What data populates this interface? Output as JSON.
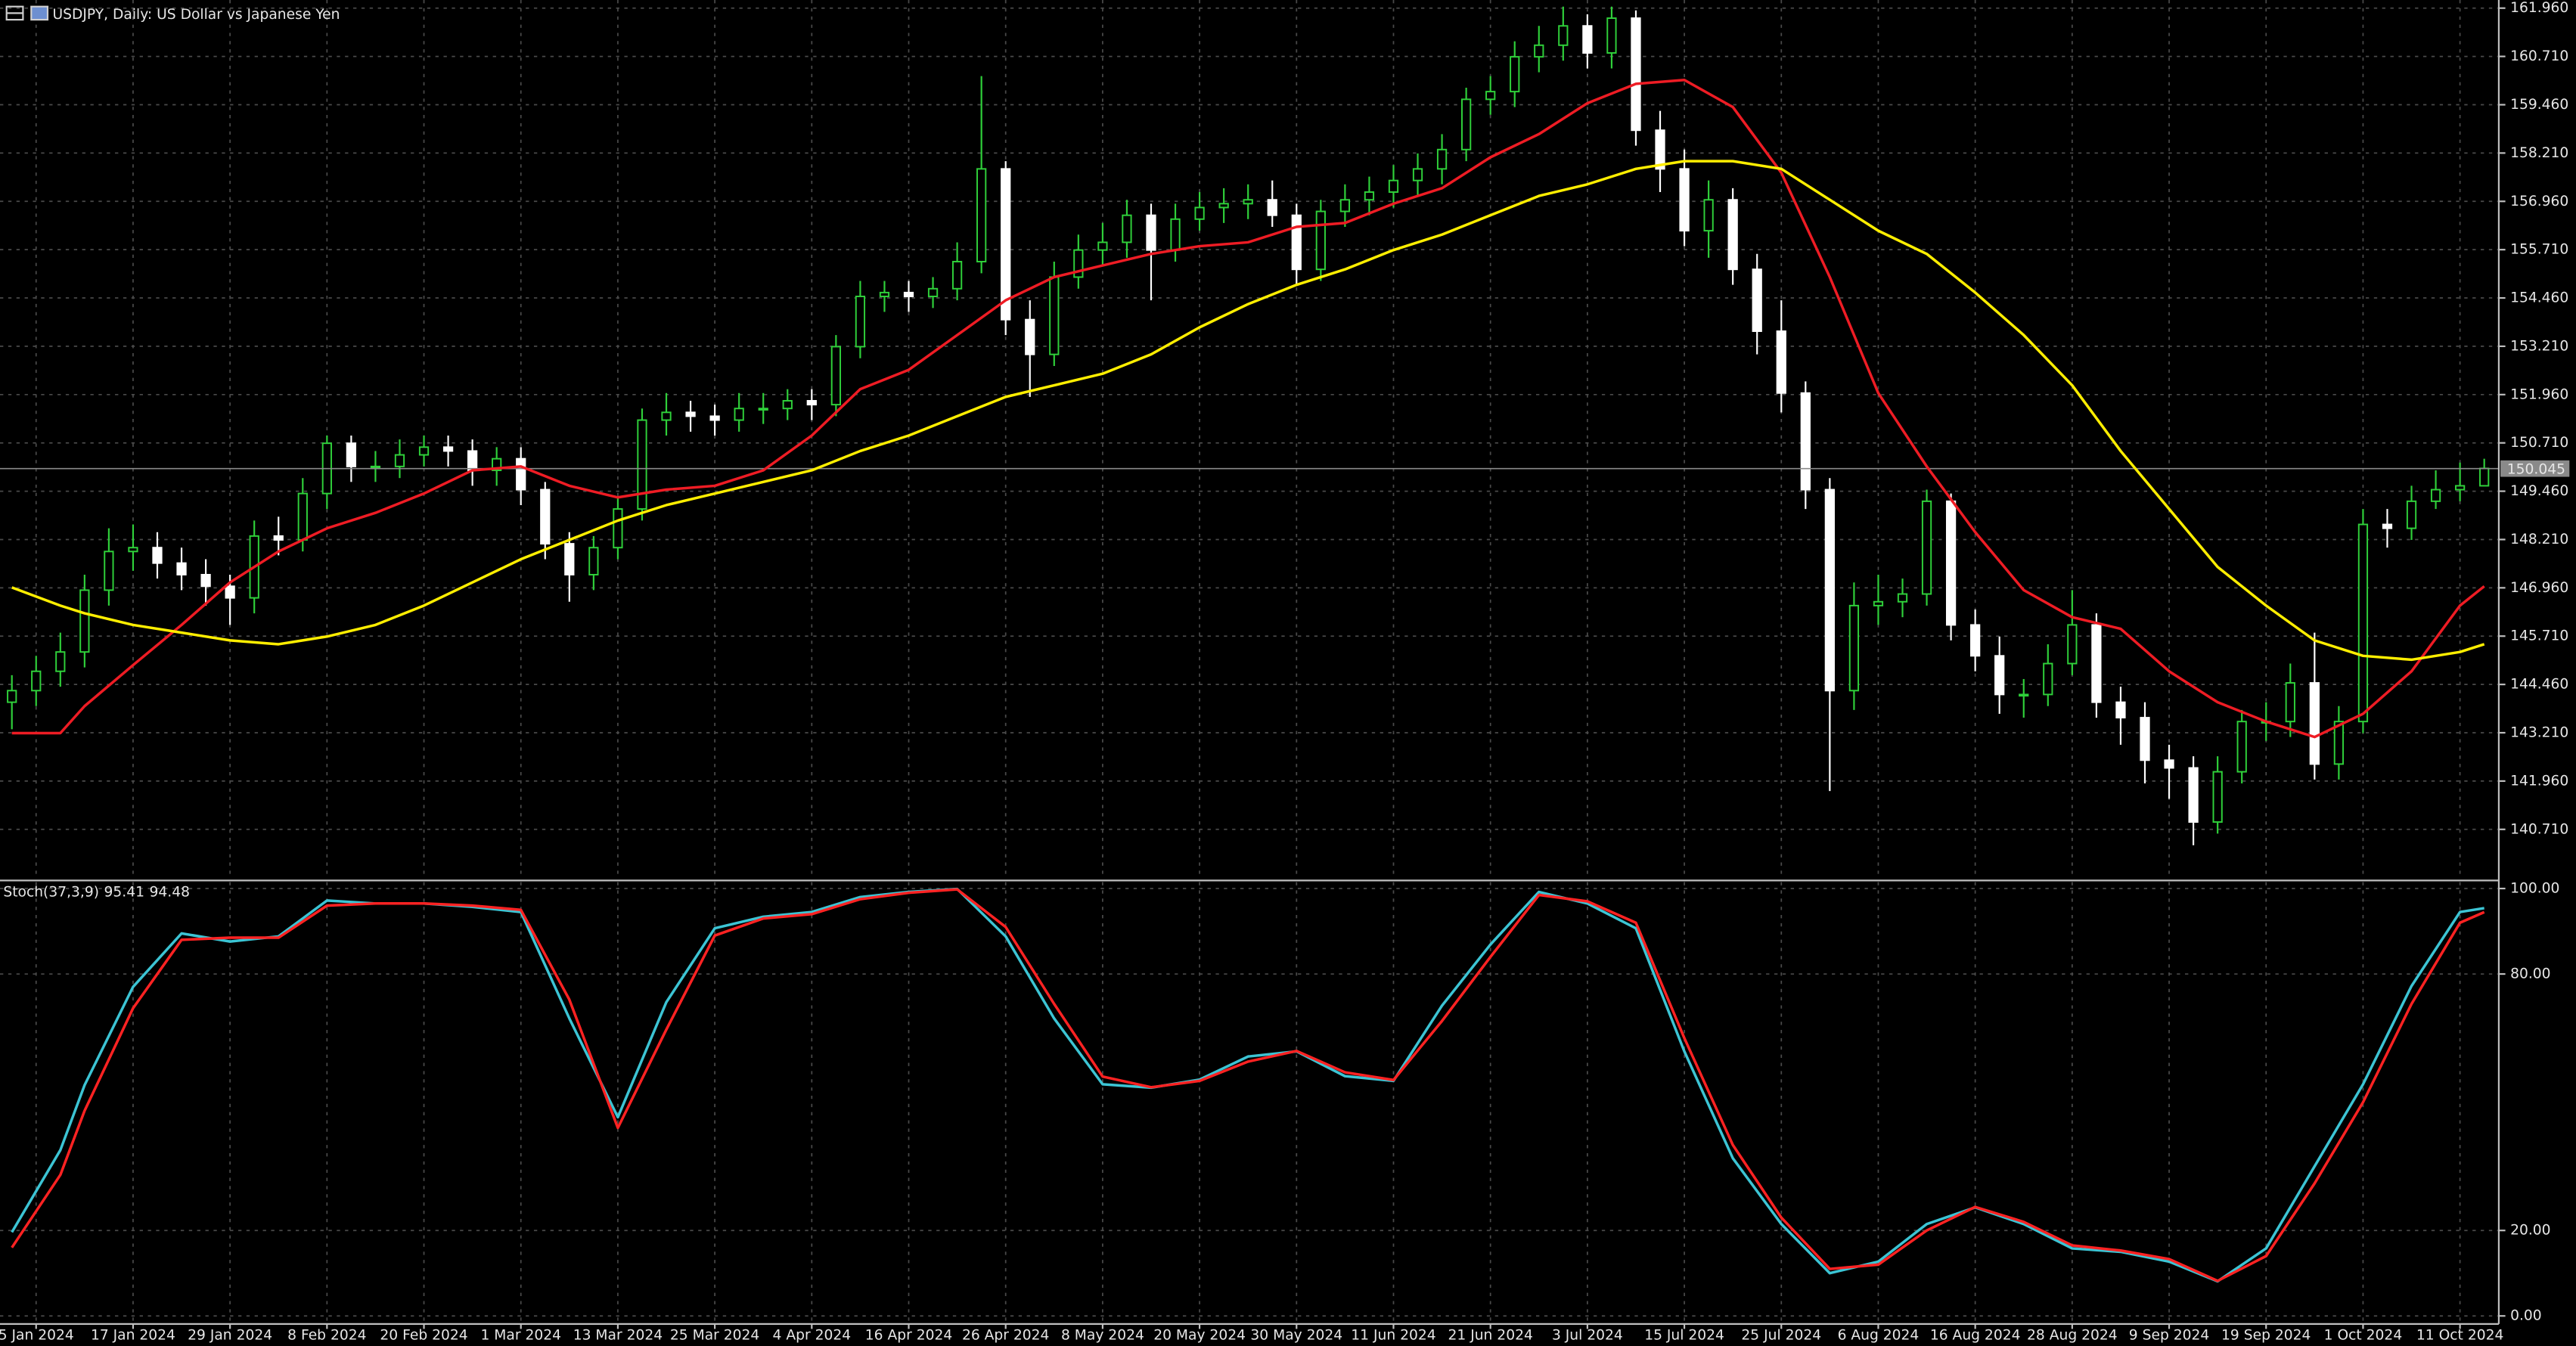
{
  "chart_data": [
    {
      "type": "candlestick",
      "title": "USDJPY, Daily:  US Dollar vs Japanese Yen",
      "open": [
        144.0,
        144.3,
        144.8,
        145.3,
        146.9,
        147.9,
        148.0,
        147.6,
        147.3,
        147.0,
        146.7,
        148.3,
        148.2,
        149.4,
        150.7,
        150.1,
        150.1,
        150.4,
        150.6,
        150.5,
        150.0,
        150.3,
        149.5,
        148.1,
        147.3,
        148.0,
        149.0,
        151.3,
        151.5,
        151.4,
        151.3,
        151.6,
        151.6,
        151.8,
        151.7,
        153.2,
        154.5,
        154.6,
        154.5,
        154.7,
        155.4,
        157.8,
        153.9,
        153.0,
        155.0,
        155.7,
        155.9,
        156.6,
        155.7,
        156.5,
        156.8,
        156.9,
        157.0,
        156.6,
        155.2,
        156.7,
        157.0,
        157.2,
        157.5,
        157.8,
        158.3,
        159.6,
        159.8,
        160.7,
        161.0,
        161.5,
        160.8,
        161.7,
        158.8,
        157.8,
        156.2,
        157.0,
        155.2,
        153.6,
        152.0,
        149.5,
        144.3,
        146.5,
        146.6,
        146.8,
        149.2,
        146.0,
        145.2,
        144.2,
        144.2,
        145.0,
        146.0,
        144.0,
        143.6,
        142.5,
        142.3,
        140.9,
        142.2,
        143.5,
        143.5,
        144.5,
        142.4,
        143.5,
        148.6,
        148.5,
        149.2,
        149.5,
        149.6
      ],
      "high": [
        144.7,
        145.2,
        145.8,
        147.3,
        148.5,
        148.6,
        148.4,
        148.0,
        147.7,
        147.3,
        148.7,
        148.8,
        149.8,
        150.9,
        150.9,
        150.5,
        150.8,
        150.9,
        150.9,
        150.8,
        150.6,
        150.6,
        149.7,
        148.4,
        148.3,
        149.3,
        151.6,
        152.0,
        151.8,
        151.7,
        152.0,
        152.0,
        152.1,
        152.1,
        153.5,
        154.9,
        154.9,
        154.9,
        155.0,
        155.9,
        160.2,
        158.0,
        154.4,
        155.4,
        156.1,
        156.4,
        157.0,
        156.9,
        156.9,
        157.2,
        157.3,
        157.4,
        157.5,
        156.9,
        157.0,
        157.4,
        157.6,
        157.9,
        158.2,
        158.7,
        159.9,
        160.2,
        161.1,
        161.5,
        162.0,
        161.8,
        162.0,
        161.9,
        159.3,
        158.3,
        157.5,
        157.3,
        155.6,
        154.4,
        152.3,
        149.8,
        147.1,
        147.3,
        147.2,
        149.5,
        149.4,
        146.4,
        145.7,
        144.6,
        145.5,
        146.9,
        146.3,
        144.4,
        144.0,
        142.9,
        142.6,
        142.6,
        143.8,
        144.0,
        145.0,
        145.8,
        143.9,
        149.0,
        149.0,
        149.6,
        150.0,
        150.2,
        150.3
      ],
      "low": [
        143.3,
        143.9,
        144.4,
        144.9,
        146.5,
        147.4,
        147.2,
        146.9,
        146.5,
        146.0,
        146.3,
        147.8,
        147.9,
        149.0,
        149.7,
        149.7,
        149.8,
        150.1,
        150.1,
        149.6,
        149.6,
        149.1,
        147.7,
        146.6,
        146.9,
        147.7,
        148.7,
        150.9,
        151.0,
        150.9,
        151.0,
        151.2,
        151.3,
        151.3,
        151.4,
        152.9,
        154.1,
        154.1,
        154.2,
        154.4,
        155.1,
        153.5,
        151.9,
        152.7,
        154.7,
        155.3,
        155.5,
        154.4,
        155.4,
        156.2,
        156.4,
        156.5,
        156.3,
        154.8,
        154.9,
        156.3,
        156.6,
        156.8,
        157.1,
        157.4,
        158.0,
        159.2,
        159.4,
        160.3,
        160.6,
        160.4,
        160.4,
        158.4,
        157.2,
        155.8,
        155.5,
        154.8,
        153.0,
        151.5,
        149.0,
        141.7,
        143.8,
        146.0,
        146.2,
        146.5,
        145.6,
        144.8,
        143.7,
        143.6,
        143.9,
        144.7,
        143.6,
        142.9,
        141.9,
        141.5,
        140.3,
        140.6,
        141.9,
        143.0,
        143.1,
        142.0,
        142.0,
        143.2,
        148.0,
        148.2,
        149.0,
        149.2,
        149.7
      ],
      "close": [
        144.3,
        144.8,
        145.3,
        146.9,
        147.9,
        148.0,
        147.6,
        147.3,
        147.0,
        146.7,
        148.3,
        148.2,
        149.4,
        150.7,
        150.1,
        150.1,
        150.4,
        150.6,
        150.5,
        150.0,
        150.3,
        149.5,
        148.1,
        147.3,
        148.0,
        149.0,
        151.3,
        151.5,
        151.4,
        151.3,
        151.6,
        151.6,
        151.8,
        151.7,
        153.2,
        154.5,
        154.6,
        154.5,
        154.7,
        155.4,
        157.8,
        153.9,
        153.0,
        155.0,
        155.7,
        155.9,
        156.6,
        155.7,
        156.5,
        156.8,
        156.9,
        157.0,
        156.6,
        155.2,
        156.7,
        157.0,
        157.2,
        157.5,
        157.8,
        158.3,
        159.6,
        159.8,
        160.7,
        161.0,
        161.5,
        160.8,
        161.7,
        158.8,
        157.8,
        156.2,
        157.0,
        155.2,
        153.6,
        152.0,
        149.5,
        144.3,
        146.5,
        146.6,
        146.8,
        149.2,
        146.0,
        145.2,
        144.2,
        144.2,
        145.0,
        146.0,
        144.0,
        143.6,
        142.5,
        142.3,
        140.9,
        142.2,
        143.5,
        143.5,
        144.5,
        142.4,
        143.5,
        148.6,
        148.5,
        149.2,
        149.5,
        149.6,
        150.05
      ],
      "up_color": "#2fd03a",
      "down_color": "#ffffff",
      "series": [
        {
          "color": "#ee1c24",
          "x": [
            0,
            2,
            3,
            5,
            7,
            9,
            11,
            13,
            15,
            17,
            19,
            21,
            23,
            25,
            27,
            29,
            31,
            33,
            35,
            37,
            39,
            41,
            43,
            45,
            47,
            49,
            51,
            53,
            55,
            57,
            59,
            61,
            63,
            65,
            67,
            69,
            71,
            73,
            75,
            77,
            79,
            81,
            83,
            85,
            87,
            89,
            91,
            93,
            95,
            97,
            99,
            101,
            102
          ],
          "values": [
            143.2,
            143.2,
            143.9,
            144.96,
            146.0,
            147.1,
            147.9,
            148.5,
            148.9,
            149.4,
            150.0,
            150.1,
            149.6,
            149.3,
            149.5,
            149.6,
            150.0,
            150.9,
            152.1,
            152.6,
            153.5,
            154.4,
            155.0,
            155.3,
            155.6,
            155.8,
            155.9,
            156.3,
            156.4,
            156.9,
            157.3,
            158.1,
            158.7,
            159.5,
            160.0,
            160.1,
            159.4,
            157.7,
            155.0,
            152.0,
            150.1,
            148.4,
            146.9,
            146.2,
            145.9,
            144.8,
            144.0,
            143.5,
            143.1,
            143.7,
            144.8,
            146.5,
            147.0
          ]
        },
        {
          "color": "#ffee00",
          "x": [
            0,
            2,
            3,
            5,
            7,
            9,
            11,
            13,
            15,
            17,
            19,
            21,
            23,
            25,
            27,
            29,
            31,
            33,
            35,
            37,
            39,
            41,
            43,
            45,
            47,
            49,
            51,
            53,
            55,
            57,
            59,
            61,
            63,
            65,
            67,
            69,
            71,
            73,
            75,
            77,
            79,
            81,
            83,
            85,
            87,
            89,
            91,
            93,
            95,
            97,
            99,
            101,
            102
          ],
          "values": [
            146.97,
            146.5,
            146.3,
            146.0,
            145.8,
            145.6,
            145.5,
            145.7,
            146.0,
            146.5,
            147.1,
            147.7,
            148.2,
            148.7,
            149.1,
            149.4,
            149.7,
            150.0,
            150.5,
            150.9,
            151.4,
            151.9,
            152.2,
            152.5,
            153.0,
            153.7,
            154.3,
            154.8,
            155.2,
            155.7,
            156.1,
            156.6,
            157.1,
            157.4,
            157.8,
            158.0,
            158.0,
            157.8,
            157.0,
            156.2,
            155.6,
            154.6,
            153.5,
            152.2,
            150.5,
            149.0,
            147.5,
            146.5,
            145.6,
            145.2,
            145.1,
            145.3,
            145.5
          ]
        }
      ],
      "last_price": 150.045,
      "xlim": [
        -0.49,
        102.6
      ],
      "xticks": [
        {
          "value": 1,
          "label": "5 Jan 2024"
        },
        {
          "value": 5,
          "label": "17 Jan 2024"
        },
        {
          "value": 9,
          "label": "29 Jan 2024"
        },
        {
          "value": 13,
          "label": "8 Feb 2024"
        },
        {
          "value": 17,
          "label": "20 Feb 2024"
        },
        {
          "value": 21,
          "label": "1 Mar 2024"
        },
        {
          "value": 25,
          "label": "13 Mar 2024"
        },
        {
          "value": 29,
          "label": "25 Mar 2024"
        },
        {
          "value": 33,
          "label": "4 Apr 2024"
        },
        {
          "value": 37,
          "label": "16 Apr 2024"
        },
        {
          "value": 41,
          "label": "26 Apr 2024"
        },
        {
          "value": 45,
          "label": "8 May 2024"
        },
        {
          "value": 49,
          "label": "20 May 2024"
        },
        {
          "value": 53,
          "label": "30 May 2024"
        },
        {
          "value": 57,
          "label": "11 Jun 2024"
        },
        {
          "value": 61,
          "label": "21 Jun 2024"
        },
        {
          "value": 65,
          "label": "3 Jul 2024"
        },
        {
          "value": 69,
          "label": "15 Jul 2024"
        },
        {
          "value": 73,
          "label": "25 Jul 2024"
        },
        {
          "value": 77,
          "label": "6 Aug 2024"
        },
        {
          "value": 81,
          "label": "16 Aug 2024"
        },
        {
          "value": 85,
          "label": "28 Aug 2024"
        },
        {
          "value": 89,
          "label": "9 Sep 2024"
        },
        {
          "value": 93,
          "label": "19 Sep 2024"
        },
        {
          "value": 97,
          "label": "1 Oct 2024"
        },
        {
          "value": 101,
          "label": "11 Oct 2024"
        }
      ],
      "ylim": [
        139.43,
        162.17
      ],
      "yticks": [
        {
          "value": 161.96,
          "label": "161.960"
        },
        {
          "value": 160.71,
          "label": "160.710"
        },
        {
          "value": 159.46,
          "label": "159.460"
        },
        {
          "value": 158.21,
          "label": "158.210"
        },
        {
          "value": 156.96,
          "label": "156.960"
        },
        {
          "value": 155.71,
          "label": "155.710"
        },
        {
          "value": 154.46,
          "label": "154.460"
        },
        {
          "value": 153.21,
          "label": "153.210"
        },
        {
          "value": 151.96,
          "label": "151.960"
        },
        {
          "value": 150.71,
          "label": "150.710"
        },
        {
          "value": 149.46,
          "label": "149.460"
        },
        {
          "value": 148.21,
          "label": "148.210"
        },
        {
          "value": 146.96,
          "label": "146.960"
        },
        {
          "value": 145.71,
          "label": "145.710"
        },
        {
          "value": 144.46,
          "label": "144.460"
        },
        {
          "value": 143.21,
          "label": "143.210"
        },
        {
          "value": 141.96,
          "label": "141.960"
        },
        {
          "value": 140.71,
          "label": "140.710"
        }
      ],
      "grid": true
    },
    {
      "type": "line",
      "title": "Stoch(37,3,9)",
      "series": [
        {
          "color": "#3cc4d4",
          "x": [
            0,
            2,
            3,
            5,
            7,
            9,
            11,
            13,
            15,
            17,
            19,
            21,
            23,
            25,
            27,
            29,
            31,
            33,
            35,
            37,
            39,
            41,
            43,
            45,
            47,
            49,
            51,
            53,
            55,
            57,
            59,
            61,
            63,
            65,
            67,
            69,
            71,
            73,
            75,
            77,
            79,
            81,
            83,
            85,
            87,
            89,
            91,
            93,
            95,
            97,
            99,
            101,
            102
          ],
          "values": [
            19.6,
            38.8,
            54,
            77,
            89.5,
            87.6,
            88.8,
            97.2,
            96.5,
            96.5,
            95.7,
            94.5,
            69.6,
            46.5,
            73.4,
            90.7,
            93.4,
            94.5,
            98,
            99.2,
            99.9,
            88.8,
            69.6,
            54.2,
            53.4,
            55.3,
            60.7,
            61.9,
            56.1,
            55,
            72.6,
            86.9,
            99.2,
            96.5,
            90.7,
            61.9,
            36.9,
            21.5,
            10,
            12.7,
            21.5,
            25.4,
            21.5,
            15.8,
            15,
            12.7,
            8.1,
            15.8,
            35,
            54.2,
            77.2,
            94.5,
            95.41
          ]
        },
        {
          "color": "#ff2222",
          "x": [
            0,
            2,
            3,
            5,
            7,
            9,
            11,
            13,
            15,
            17,
            19,
            21,
            23,
            25,
            27,
            29,
            31,
            33,
            35,
            37,
            39,
            41,
            43,
            45,
            47,
            49,
            51,
            53,
            55,
            57,
            59,
            61,
            63,
            65,
            67,
            69,
            71,
            73,
            75,
            77,
            79,
            81,
            83,
            85,
            87,
            89,
            91,
            93,
            95,
            97,
            99,
            101,
            102
          ],
          "values": [
            16,
            33,
            48,
            72,
            88,
            88.5,
            88.5,
            96,
            96.5,
            96.5,
            96,
            95,
            74,
            44,
            67,
            89,
            93,
            94,
            97.5,
            99,
            99.8,
            91,
            73,
            56,
            53.5,
            55,
            59.5,
            62,
            57,
            55.2,
            69,
            84,
            98.5,
            97,
            92,
            65,
            40,
            23,
            11,
            12,
            20,
            25.5,
            22,
            16.5,
            15.3,
            13.3,
            8.2,
            14,
            31,
            50,
            73,
            92,
            94.48
          ]
        }
      ],
      "xlim": [
        -0.49,
        102.6
      ],
      "ylim": [
        -1.5,
        101.5
      ],
      "yticks": [
        {
          "value": 100,
          "label": "100.00"
        },
        {
          "value": 80,
          "label": "80.00"
        },
        {
          "value": 20,
          "label": "20.00"
        },
        {
          "value": 0,
          "label": "0.00"
        }
      ],
      "grid": true
    }
  ]
}
